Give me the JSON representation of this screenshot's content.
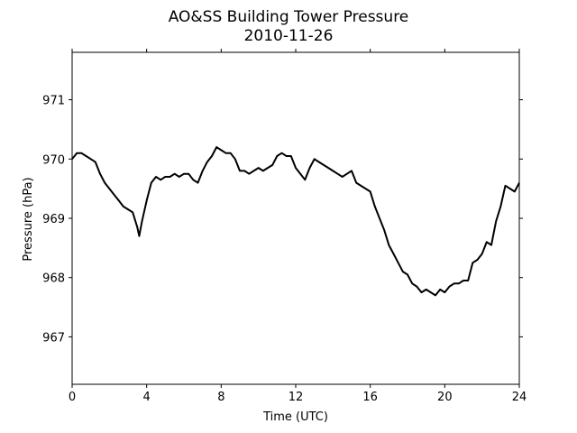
{
  "chart_data": {
    "type": "line",
    "title": "AO&SS Building Tower Pressure",
    "subtitle": "2010-11-26",
    "xlabel": "Time (UTC)",
    "ylabel": "Pressure (hPa)",
    "xlim": [
      0,
      24
    ],
    "ylim": [
      966.2,
      971.8
    ],
    "xticks": [
      0,
      4,
      8,
      12,
      16,
      20,
      24
    ],
    "yticks": [
      967,
      968,
      969,
      970,
      971
    ],
    "grid": false,
    "legend": "none",
    "line_color": "#000000",
    "series": [
      {
        "x": [
          0,
          0.25,
          0.5,
          0.75,
          1.0,
          1.25,
          1.5,
          1.75,
          2.0,
          2.25,
          2.5,
          2.75,
          3.0,
          3.25,
          3.5,
          3.6,
          3.75,
          4.0,
          4.25,
          4.5,
          4.75,
          5.0,
          5.25,
          5.5,
          5.75,
          6.0,
          6.25,
          6.5,
          6.75,
          7.0,
          7.25,
          7.5,
          7.75,
          8.0,
          8.25,
          8.5,
          8.75,
          9.0,
          9.25,
          9.5,
          9.75,
          10.0,
          10.25,
          10.5,
          10.75,
          11.0,
          11.25,
          11.5,
          11.75,
          12.0,
          12.25,
          12.5,
          12.75,
          13.0,
          13.25,
          13.5,
          13.75,
          14.0,
          14.25,
          14.5,
          14.75,
          15.0,
          15.25,
          15.5,
          15.75,
          16.0,
          16.25,
          16.5,
          16.75,
          17.0,
          17.25,
          17.5,
          17.75,
          18.0,
          18.25,
          18.5,
          18.75,
          19.0,
          19.25,
          19.5,
          19.75,
          20.0,
          20.25,
          20.5,
          20.75,
          21.0,
          21.25,
          21.5,
          21.75,
          22.0,
          22.25,
          22.5,
          22.75,
          23.0,
          23.25,
          23.5,
          23.75,
          24.0
        ],
        "values": [
          970.0,
          970.1,
          970.1,
          970.05,
          970.0,
          969.95,
          969.75,
          969.6,
          969.5,
          969.4,
          969.3,
          969.2,
          969.15,
          969.1,
          968.85,
          968.7,
          968.95,
          969.3,
          969.6,
          969.7,
          969.65,
          969.7,
          969.7,
          969.75,
          969.7,
          969.75,
          969.75,
          969.65,
          969.6,
          969.8,
          969.95,
          970.05,
          970.2,
          970.15,
          970.1,
          970.1,
          970.0,
          969.8,
          969.8,
          969.75,
          969.8,
          969.85,
          969.8,
          969.85,
          969.9,
          970.05,
          970.1,
          970.05,
          970.05,
          969.85,
          969.75,
          969.65,
          969.85,
          970.0,
          969.95,
          969.9,
          969.85,
          969.8,
          969.75,
          969.7,
          969.75,
          969.8,
          969.6,
          969.55,
          969.5,
          969.45,
          969.2,
          969.0,
          968.8,
          968.55,
          968.4,
          968.25,
          968.1,
          968.05,
          967.9,
          967.85,
          967.75,
          967.8,
          967.75,
          967.7,
          967.8,
          967.75,
          967.85,
          967.9,
          967.9,
          967.95,
          967.95,
          968.25,
          968.3,
          968.4,
          968.6,
          968.55,
          968.95,
          969.2,
          969.55,
          969.5,
          969.45,
          969.6
        ]
      }
    ]
  }
}
